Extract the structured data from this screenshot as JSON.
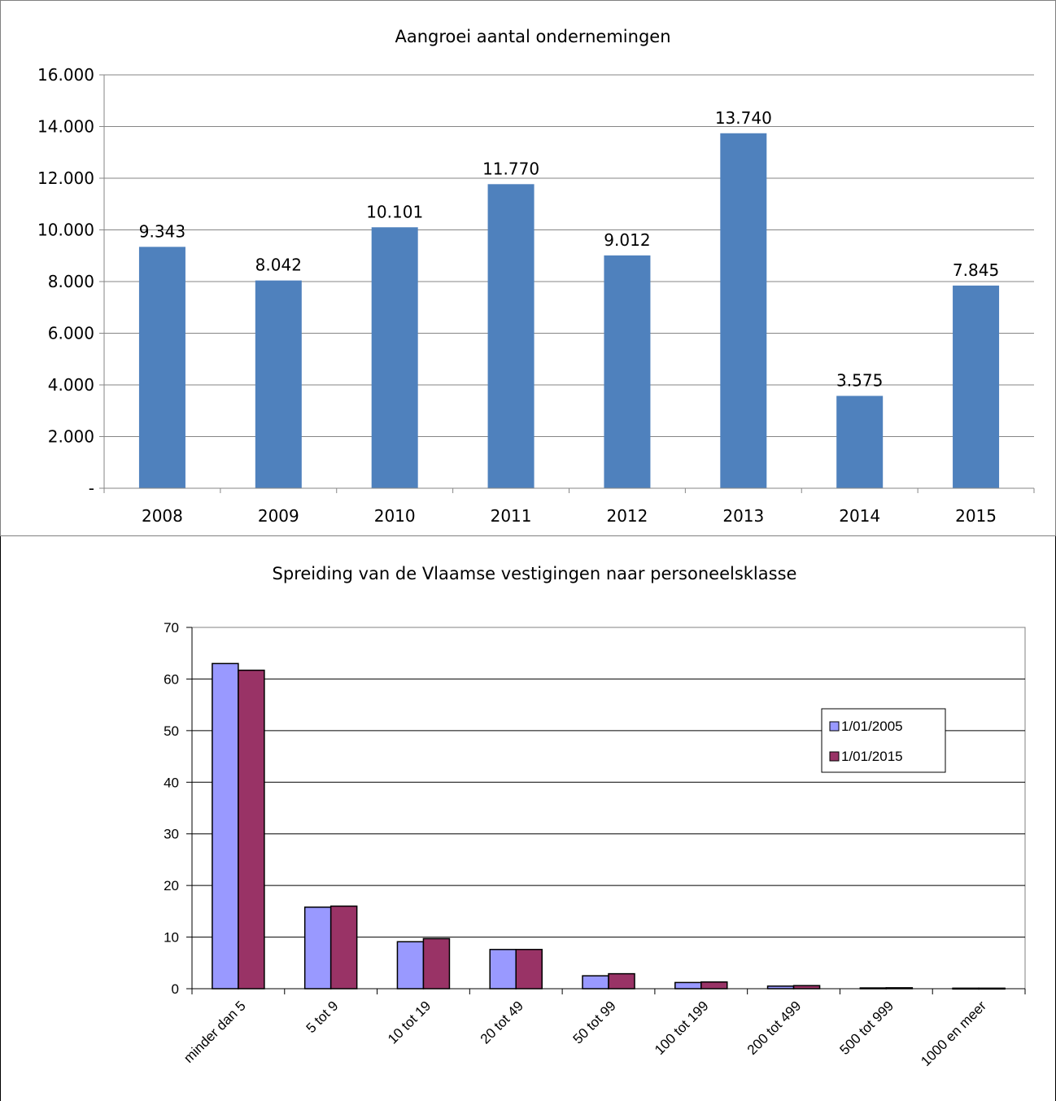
{
  "chart_data": [
    {
      "type": "bar",
      "title": "Aangroei aantal ondernemingen",
      "categories": [
        "2008",
        "2009",
        "2010",
        "2011",
        "2012",
        "2013",
        "2014",
        "2015"
      ],
      "values": [
        9343,
        8042,
        10101,
        11770,
        9012,
        13740,
        3575,
        7845
      ],
      "value_labels": [
        "9.343",
        "8.042",
        "10.101",
        "11.770",
        "9.012",
        "13.740",
        "3.575",
        "7.845"
      ],
      "y_ticks": [
        "-",
        "2.000",
        "4.000",
        "6.000",
        "8.000",
        "10.000",
        "12.000",
        "14.000",
        "16.000"
      ],
      "ylim": [
        0,
        16000
      ],
      "grid": true,
      "legend": "none",
      "bar_color": "#4f81bd"
    },
    {
      "type": "bar",
      "title": "Spreiding van de Vlaamse vestigingen naar personeelsklasse",
      "categories": [
        "minder dan 5",
        "5 tot 9",
        "10 tot 19",
        "20 tot 49",
        "50 tot 99",
        "100 tot 199",
        "200 tot 499",
        "500 tot 999",
        "1000 en meer"
      ],
      "series": [
        {
          "name": "1/01/2005",
          "values": [
            63,
            15.8,
            9.1,
            7.6,
            2.5,
            1.2,
            0.5,
            0.15,
            0.1
          ],
          "color": "#9999ff"
        },
        {
          "name": "1/01/2015",
          "values": [
            61.7,
            16,
            9.7,
            7.6,
            2.9,
            1.3,
            0.6,
            0.18,
            0.1
          ],
          "color": "#993366"
        }
      ],
      "y_ticks": [
        "0",
        "10",
        "20",
        "30",
        "40",
        "50",
        "60",
        "70"
      ],
      "ylim": [
        0,
        70
      ],
      "grid": true,
      "legend": "right"
    }
  ]
}
